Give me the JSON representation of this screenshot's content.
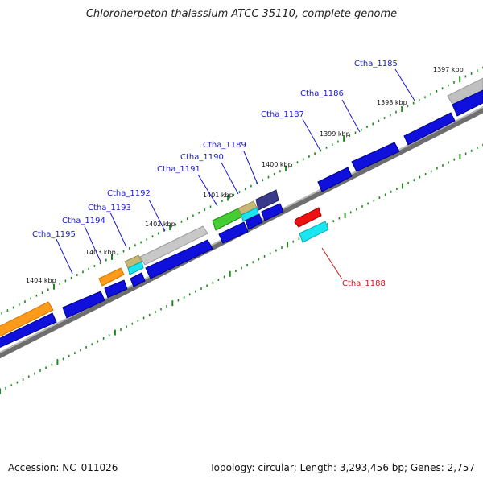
{
  "title": "Chloroherpeton thalassium ATCC 35110, complete genome",
  "footer": {
    "accession": "Accession: NC_011026",
    "summary": "Topology: circular; Length: 3,293,456 bp; Genes: 2,757"
  },
  "colors": {
    "backbone": "#8a8a8a",
    "tick": "#1f8a1f",
    "label_forward": "#1a1acc",
    "label_reverse": "#cc1a1a",
    "cds_blue": "#1010dd",
    "rna_gray": "#c0c0c0",
    "orange": "#ff9a1a",
    "cyan": "#18e6f0",
    "tan": "#c8b878",
    "green": "#44cc33",
    "navy": "#3a3a8a",
    "red": "#ee1111"
  },
  "ruler": {
    "unit": "kbp",
    "ticks": [
      {
        "label": "1397 kbp",
        "kbp": 1397
      },
      {
        "label": "1398 kbp",
        "kbp": 1398
      },
      {
        "label": "1399 kbp",
        "kbp": 1399
      },
      {
        "label": "1400 kbp",
        "kbp": 1400
      },
      {
        "label": "1401 kbp",
        "kbp": 1401
      },
      {
        "label": "1402 kbp",
        "kbp": 1402
      },
      {
        "label": "1403 kbp",
        "kbp": 1403
      },
      {
        "label": "1404 kbp",
        "kbp": 1404
      }
    ]
  },
  "gene_labels": [
    {
      "name": "Ctha_1185",
      "strand": "forward"
    },
    {
      "name": "Ctha_1186",
      "strand": "forward"
    },
    {
      "name": "Ctha_1187",
      "strand": "forward"
    },
    {
      "name": "Ctha_1189",
      "strand": "forward"
    },
    {
      "name": "Ctha_1190",
      "strand": "forward"
    },
    {
      "name": "Ctha_1191",
      "strand": "forward"
    },
    {
      "name": "Ctha_1192",
      "strand": "forward"
    },
    {
      "name": "Ctha_1193",
      "strand": "forward"
    },
    {
      "name": "Ctha_1194",
      "strand": "forward"
    },
    {
      "name": "Ctha_1195",
      "strand": "forward"
    },
    {
      "name": "Ctha_1188",
      "strand": "reverse"
    }
  ]
}
